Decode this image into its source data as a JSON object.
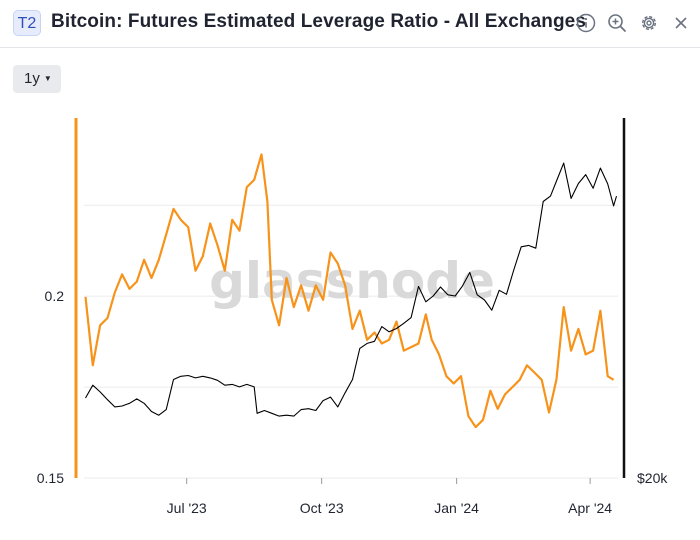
{
  "header": {
    "badge": "T2",
    "title": "Bitcoin: Futures Estimated Leverage Ratio - All Exchanges",
    "icons": [
      "info-icon",
      "zoom-in-icon",
      "gear-icon",
      "close-icon"
    ]
  },
  "controls": {
    "range": "1y"
  },
  "watermark": "glassnode",
  "chart_data": {
    "type": "line",
    "title": "Bitcoin: Futures Estimated Leverage Ratio - All Exchanges",
    "x_range": [
      "2023-04-22",
      "2024-04-20"
    ],
    "x_ticks": [
      {
        "date": "2023-07-01",
        "label": "Jul '23"
      },
      {
        "date": "2023-10-01",
        "label": "Oct '23"
      },
      {
        "date": "2024-01-01",
        "label": "Jan '24"
      },
      {
        "date": "2024-04-01",
        "label": "Apr '24"
      }
    ],
    "y_left": {
      "ticks": [
        0.15,
        0.2
      ],
      "range": [
        0.15,
        0.249
      ]
    },
    "y_right": {
      "ticks": [
        "$20k"
      ],
      "scale": "log"
    },
    "colors": {
      "leverage": "#f7931a",
      "price": "#000000"
    },
    "series": [
      {
        "key": "leverage",
        "axis": "left",
        "points": [
          [
            "2023-04-23",
            0.1998
          ],
          [
            "2023-04-28",
            0.181
          ],
          [
            "2023-05-03",
            0.192
          ],
          [
            "2023-05-08",
            0.194
          ],
          [
            "2023-05-13",
            0.201
          ],
          [
            "2023-05-18",
            0.206
          ],
          [
            "2023-05-23",
            0.202
          ],
          [
            "2023-05-28",
            0.204
          ],
          [
            "2023-06-02",
            0.21
          ],
          [
            "2023-06-07",
            0.205
          ],
          [
            "2023-06-12",
            0.21
          ],
          [
            "2023-06-17",
            0.217
          ],
          [
            "2023-06-22",
            0.224
          ],
          [
            "2023-06-27",
            0.221
          ],
          [
            "2023-07-02",
            0.219
          ],
          [
            "2023-07-07",
            0.207
          ],
          [
            "2023-07-12",
            0.211
          ],
          [
            "2023-07-17",
            0.22
          ],
          [
            "2023-07-22",
            0.214
          ],
          [
            "2023-07-27",
            0.207
          ],
          [
            "2023-08-01",
            0.221
          ],
          [
            "2023-08-06",
            0.218
          ],
          [
            "2023-08-11",
            0.23
          ],
          [
            "2023-08-16",
            0.232
          ],
          [
            "2023-08-21",
            0.239
          ],
          [
            "2023-08-25",
            0.226
          ],
          [
            "2023-08-28",
            0.199
          ],
          [
            "2023-09-02",
            0.192
          ],
          [
            "2023-09-07",
            0.205
          ],
          [
            "2023-09-12",
            0.197
          ],
          [
            "2023-09-17",
            0.203
          ],
          [
            "2023-09-22",
            0.196
          ],
          [
            "2023-09-27",
            0.203
          ],
          [
            "2023-10-02",
            0.199
          ],
          [
            "2023-10-07",
            0.212
          ],
          [
            "2023-10-12",
            0.209
          ],
          [
            "2023-10-17",
            0.203
          ],
          [
            "2023-10-22",
            0.191
          ],
          [
            "2023-10-27",
            0.196
          ],
          [
            "2023-11-01",
            0.188
          ],
          [
            "2023-11-06",
            0.19
          ],
          [
            "2023-11-11",
            0.187
          ],
          [
            "2023-11-16",
            0.188
          ],
          [
            "2023-11-21",
            0.193
          ],
          [
            "2023-11-26",
            0.185
          ],
          [
            "2023-12-01",
            0.186
          ],
          [
            "2023-12-06",
            0.187
          ],
          [
            "2023-12-11",
            0.195
          ],
          [
            "2023-12-15",
            0.188
          ],
          [
            "2023-12-20",
            0.184
          ],
          [
            "2023-12-25",
            0.178
          ],
          [
            "2023-12-30",
            0.176
          ],
          [
            "2024-01-04",
            0.178
          ],
          [
            "2024-01-09",
            0.167
          ],
          [
            "2024-01-14",
            0.164
          ],
          [
            "2024-01-19",
            0.166
          ],
          [
            "2024-01-24",
            0.174
          ],
          [
            "2024-01-29",
            0.169
          ],
          [
            "2024-02-03",
            0.173
          ],
          [
            "2024-02-08",
            0.175
          ],
          [
            "2024-02-13",
            0.177
          ],
          [
            "2024-02-18",
            0.181
          ],
          [
            "2024-02-23",
            0.179
          ],
          [
            "2024-02-28",
            0.177
          ],
          [
            "2024-03-04",
            0.168
          ],
          [
            "2024-03-09",
            0.177
          ],
          [
            "2024-03-14",
            0.197
          ],
          [
            "2024-03-19",
            0.185
          ],
          [
            "2024-03-24",
            0.191
          ],
          [
            "2024-03-29",
            0.184
          ],
          [
            "2024-04-03",
            0.185
          ],
          [
            "2024-04-08",
            0.196
          ],
          [
            "2024-04-13",
            0.178
          ],
          [
            "2024-04-17",
            0.177
          ]
        ]
      },
      {
        "key": "price",
        "axis": "right",
        "points": [
          [
            "2023-04-23",
            27800
          ],
          [
            "2023-04-28",
            29300
          ],
          [
            "2023-05-03",
            28500
          ],
          [
            "2023-05-08",
            27600
          ],
          [
            "2023-05-13",
            26800
          ],
          [
            "2023-05-18",
            26900
          ],
          [
            "2023-05-23",
            27200
          ],
          [
            "2023-05-28",
            27700
          ],
          [
            "2023-06-02",
            27200
          ],
          [
            "2023-06-07",
            26300
          ],
          [
            "2023-06-12",
            25900
          ],
          [
            "2023-06-17",
            26500
          ],
          [
            "2023-06-22",
            30000
          ],
          [
            "2023-06-27",
            30400
          ],
          [
            "2023-07-02",
            30500
          ],
          [
            "2023-07-07",
            30200
          ],
          [
            "2023-07-12",
            30400
          ],
          [
            "2023-07-17",
            30200
          ],
          [
            "2023-07-22",
            29900
          ],
          [
            "2023-07-27",
            29300
          ],
          [
            "2023-08-01",
            29400
          ],
          [
            "2023-08-06",
            29100
          ],
          [
            "2023-08-11",
            29400
          ],
          [
            "2023-08-16",
            29100
          ],
          [
            "2023-08-18",
            26100
          ],
          [
            "2023-08-23",
            26400
          ],
          [
            "2023-08-28",
            26100
          ],
          [
            "2023-09-02",
            25800
          ],
          [
            "2023-09-07",
            25900
          ],
          [
            "2023-09-12",
            25800
          ],
          [
            "2023-09-17",
            26500
          ],
          [
            "2023-09-22",
            26600
          ],
          [
            "2023-09-27",
            26400
          ],
          [
            "2023-10-02",
            27500
          ],
          [
            "2023-10-07",
            27900
          ],
          [
            "2023-10-12",
            26800
          ],
          [
            "2023-10-17",
            28400
          ],
          [
            "2023-10-22",
            30000
          ],
          [
            "2023-10-27",
            34100
          ],
          [
            "2023-11-01",
            34800
          ],
          [
            "2023-11-06",
            35100
          ],
          [
            "2023-11-11",
            37300
          ],
          [
            "2023-11-16",
            36500
          ],
          [
            "2023-11-21",
            37000
          ],
          [
            "2023-11-26",
            37800
          ],
          [
            "2023-12-01",
            38700
          ],
          [
            "2023-12-06",
            44000
          ],
          [
            "2023-12-11",
            41300
          ],
          [
            "2023-12-16",
            42300
          ],
          [
            "2023-12-21",
            43900
          ],
          [
            "2023-12-26",
            42500
          ],
          [
            "2023-12-31",
            42300
          ],
          [
            "2024-01-05",
            44100
          ],
          [
            "2024-01-10",
            46600
          ],
          [
            "2024-01-15",
            42500
          ],
          [
            "2024-01-20",
            41600
          ],
          [
            "2024-01-25",
            39900
          ],
          [
            "2024-01-30",
            43300
          ],
          [
            "2024-02-04",
            42600
          ],
          [
            "2024-02-09",
            47100
          ],
          [
            "2024-02-14",
            51800
          ],
          [
            "2024-02-19",
            52100
          ],
          [
            "2024-02-24",
            51500
          ],
          [
            "2024-02-29",
            62400
          ],
          [
            "2024-03-05",
            63800
          ],
          [
            "2024-03-10",
            68900
          ],
          [
            "2024-03-14",
            73100
          ],
          [
            "2024-03-19",
            63200
          ],
          [
            "2024-03-24",
            67200
          ],
          [
            "2024-03-29",
            69700
          ],
          [
            "2024-04-03",
            65900
          ],
          [
            "2024-04-08",
            71600
          ],
          [
            "2024-04-13",
            67100
          ],
          [
            "2024-04-17",
            61300
          ],
          [
            "2024-04-19",
            63800
          ]
        ]
      }
    ]
  }
}
